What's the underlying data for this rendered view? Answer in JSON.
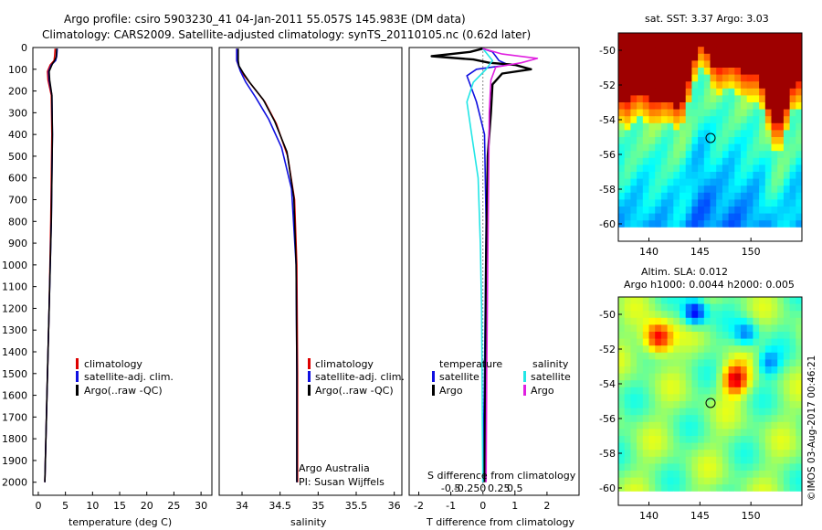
{
  "header": {
    "line1": "Argo profile: csiro 5903230_41 04-Jan-2011 55.057S 145.983E (DM data)",
    "line2": "Climatology: CARS2009. Satellite-adjusted climatology: synTS_20110105.nc (0.62d later)"
  },
  "colors": {
    "climatology": "#dd0000",
    "satellite": "#1010e0",
    "argo": "#000000",
    "sal_satellite": "#22e6e6",
    "sal_argo": "#e020e0"
  },
  "chart_data": [
    {
      "type": "line",
      "id": "temperature",
      "xlabel": "temperature (deg C)",
      "ylabel": "",
      "xlim": [
        -1,
        32
      ],
      "ylim": [
        2060,
        0
      ],
      "xticks": [
        "0",
        "5",
        "10",
        "15",
        "20",
        "25",
        "30"
      ],
      "yticks": [
        "0",
        "100",
        "200",
        "300",
        "400",
        "500",
        "600",
        "700",
        "800",
        "900",
        "1000",
        "1100",
        "1200",
        "1300",
        "1400",
        "1500",
        "1600",
        "1700",
        "1800",
        "1900",
        "2000"
      ],
      "legend": {
        "position": "bottom-center",
        "entries": [
          "climatology",
          "satellite-adj. clim.",
          "Argo(..raw -QC)"
        ]
      },
      "series": [
        {
          "name": "climatology",
          "color": "#dd0000",
          "points": [
            [
              3.1,
              5
            ],
            [
              3.0,
              40
            ],
            [
              2.9,
              60
            ],
            [
              2.2,
              80
            ],
            [
              1.7,
              110
            ],
            [
              1.8,
              150
            ],
            [
              2.4,
              220
            ],
            [
              2.5,
              400
            ],
            [
              2.3,
              800
            ],
            [
              2.0,
              1200
            ],
            [
              1.6,
              1600
            ],
            [
              1.2,
              2000
            ]
          ]
        },
        {
          "name": "satellite-adj. clim.",
          "color": "#1010e0",
          "points": [
            [
              3.5,
              5
            ],
            [
              3.4,
              40
            ],
            [
              3.2,
              60
            ],
            [
              2.4,
              80
            ],
            [
              1.9,
              110
            ],
            [
              2.0,
              150
            ],
            [
              2.5,
              220
            ],
            [
              2.6,
              400
            ],
            [
              2.4,
              800
            ],
            [
              2.0,
              1200
            ],
            [
              1.6,
              1600
            ],
            [
              1.2,
              2000
            ]
          ]
        },
        {
          "name": "Argo(..raw -QC)",
          "color": "#000000",
          "points": [
            [
              3.4,
              5
            ],
            [
              3.3,
              45
            ],
            [
              3.0,
              60
            ],
            [
              2.6,
              75
            ],
            [
              2.0,
              110
            ],
            [
              2.1,
              150
            ],
            [
              2.5,
              220
            ],
            [
              2.6,
              400
            ],
            [
              2.4,
              800
            ],
            [
              2.0,
              1200
            ],
            [
              1.6,
              1600
            ],
            [
              1.2,
              2000
            ]
          ]
        }
      ]
    },
    {
      "type": "line",
      "id": "salinity",
      "xlabel": "salinity",
      "ylabel": "",
      "xlim": [
        33.7,
        36.1
      ],
      "ylim": [
        2060,
        0
      ],
      "xticks": [
        "34",
        "34.5",
        "35",
        "35.5",
        "36"
      ],
      "legend": {
        "position": "bottom-right",
        "entries": [
          "climatology",
          "satellite-adj. clim.",
          "Argo(..raw -QC)"
        ]
      },
      "annotation": {
        "line1": "Argo Australia",
        "line2": "PI: Susan Wijffels"
      },
      "series": [
        {
          "name": "climatology",
          "color": "#dd0000",
          "points": [
            [
              33.93,
              5
            ],
            [
              33.93,
              60
            ],
            [
              33.96,
              90
            ],
            [
              34.03,
              130
            ],
            [
              34.12,
              170
            ],
            [
              34.3,
              250
            ],
            [
              34.45,
              350
            ],
            [
              34.6,
              500
            ],
            [
              34.69,
              700
            ],
            [
              34.72,
              1000
            ],
            [
              34.73,
              1500
            ],
            [
              34.73,
              2000
            ]
          ]
        },
        {
          "name": "satellite-adj. clim.",
          "color": "#1010e0",
          "points": [
            [
              33.93,
              5
            ],
            [
              33.93,
              60
            ],
            [
              33.98,
              110
            ],
            [
              34.05,
              160
            ],
            [
              34.18,
              230
            ],
            [
              34.35,
              330
            ],
            [
              34.52,
              460
            ],
            [
              34.65,
              650
            ],
            [
              34.71,
              1000
            ],
            [
              34.72,
              1500
            ],
            [
              34.72,
              2000
            ]
          ]
        },
        {
          "name": "Argo(..raw -QC)",
          "color": "#000000",
          "points": [
            [
              33.95,
              5
            ],
            [
              33.95,
              60
            ],
            [
              33.96,
              85
            ],
            [
              34.02,
              120
            ],
            [
              34.1,
              160
            ],
            [
              34.28,
              240
            ],
            [
              34.43,
              340
            ],
            [
              34.59,
              480
            ],
            [
              34.68,
              690
            ],
            [
              34.71,
              1000
            ],
            [
              34.72,
              1500
            ],
            [
              34.72,
              2000
            ]
          ]
        }
      ]
    },
    {
      "type": "line",
      "id": "difference",
      "xlabel": "T difference from climatology",
      "xlabel_top": "S difference from climatology",
      "xlim": [
        -2.3,
        3.0
      ],
      "ylim": [
        2060,
        0
      ],
      "xticks": [
        "-2",
        "-1",
        "0",
        "1",
        "2"
      ],
      "xticks_sal": [
        "-0.5",
        "-0.25",
        "0",
        "0.25",
        "0.5"
      ],
      "legend": {
        "position": "bottom",
        "col1_title": "temperature",
        "col2_title": "salinity",
        "entries": [
          "satellite",
          "Argo",
          "satellite",
          "Argo"
        ]
      },
      "series": [
        {
          "name": "temperature satellite",
          "color": "#1010e0",
          "points": [
            [
              0,
              5
            ],
            [
              0.3,
              20
            ],
            [
              0.4,
              40
            ],
            [
              0.5,
              60
            ],
            [
              0.8,
              80
            ],
            [
              -0.2,
              100
            ],
            [
              -0.5,
              130
            ],
            [
              -0.4,
              170
            ],
            [
              -0.2,
              250
            ],
            [
              0.05,
              400
            ],
            [
              0.1,
              800
            ],
            [
              0.05,
              1500
            ],
            [
              0,
              2000
            ]
          ]
        },
        {
          "name": "temperature Argo",
          "color": "#000000",
          "points": [
            [
              0,
              5
            ],
            [
              -0.4,
              20
            ],
            [
              -1.6,
              40
            ],
            [
              -0.3,
              55
            ],
            [
              0.2,
              70
            ],
            [
              1.0,
              80
            ],
            [
              1.5,
              100
            ],
            [
              0.6,
              120
            ],
            [
              0.3,
              170
            ],
            [
              0.25,
              300
            ],
            [
              0.15,
              500
            ],
            [
              0.1,
              1000
            ],
            [
              0.08,
              1500
            ],
            [
              0.05,
              2000
            ]
          ]
        },
        {
          "name": "salinity satellite",
          "color": "#22e6e6",
          "points": [
            [
              0,
              5
            ],
            [
              0.3,
              60
            ],
            [
              0.1,
              100
            ],
            [
              -0.3,
              160
            ],
            [
              -0.5,
              250
            ],
            [
              -0.35,
              400
            ],
            [
              -0.15,
              600
            ],
            [
              -0.08,
              900
            ],
            [
              -0.04,
              1200
            ],
            [
              -0.02,
              1600
            ],
            [
              0,
              2000
            ]
          ]
        },
        {
          "name": "salinity Argo",
          "color": "#e020e0",
          "points": [
            [
              0,
              5
            ],
            [
              0.6,
              30
            ],
            [
              1.7,
              50
            ],
            [
              1.2,
              70
            ],
            [
              0.4,
              90
            ],
            [
              0.25,
              150
            ],
            [
              0.2,
              300
            ],
            [
              0.18,
              600
            ],
            [
              0.15,
              1000
            ],
            [
              0.12,
              1500
            ],
            [
              0.1,
              2000
            ]
          ]
        }
      ]
    },
    {
      "type": "heatmap",
      "id": "sst",
      "title": "sat. SST: 3.37  Argo: 3.03",
      "xlim": [
        137,
        155
      ],
      "ylim": [
        -61,
        -49
      ],
      "xticks": [
        "140",
        "145",
        "150"
      ],
      "yticks": [
        "-50",
        "-52",
        "-54",
        "-56",
        "-58",
        "-60"
      ],
      "marker": {
        "lon": 145.983,
        "lat": -55.057
      }
    },
    {
      "type": "heatmap",
      "id": "sla",
      "title_line1": "Altim. SLA: 0.012",
      "title_line2": "Argo h1000: 0.0044 h2000: 0.005",
      "xlim": [
        137,
        155
      ],
      "ylim": [
        -61,
        -49
      ],
      "xticks": [
        "140",
        "145",
        "150"
      ],
      "yticks": [
        "-50",
        "-52",
        "-54",
        "-56",
        "-58",
        "-60"
      ],
      "marker": {
        "lon": 145.983,
        "lat": -55.057
      }
    }
  ],
  "footer": {
    "stamp": "©IMOS 03-Aug-2017 00:46:21"
  }
}
